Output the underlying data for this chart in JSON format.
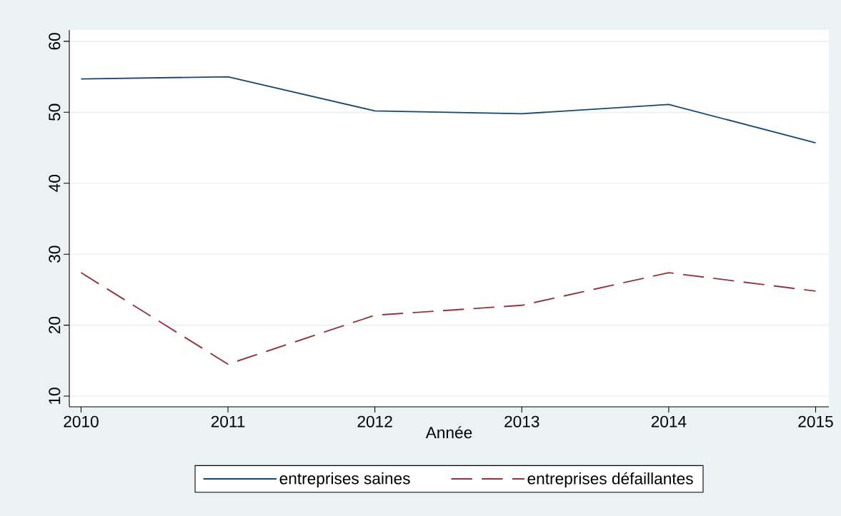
{
  "chart_data": {
    "type": "line",
    "xlabel": "Année",
    "x": [
      2010,
      2011,
      2012,
      2013,
      2014,
      2015
    ],
    "series": [
      {
        "name": "entreprises saines",
        "color": "#1a476f",
        "line_style": "solid",
        "values": [
          54.7,
          55.0,
          50.2,
          49.8,
          51.1,
          45.7
        ]
      },
      {
        "name": "entreprises défaillantes",
        "color": "#90353b",
        "line_style": "dashed",
        "values": [
          27.4,
          14.5,
          21.4,
          22.8,
          27.4,
          24.8
        ]
      }
    ],
    "xlim": [
      2009.92,
      2015.09
    ],
    "ylim": [
      8.5,
      61.6
    ],
    "xticks": [
      2010,
      2011,
      2012,
      2013,
      2014,
      2015
    ],
    "yticks": [
      10,
      20,
      30,
      40,
      50,
      60
    ],
    "grid": "y",
    "legend": "bottom",
    "marker": "none"
  }
}
